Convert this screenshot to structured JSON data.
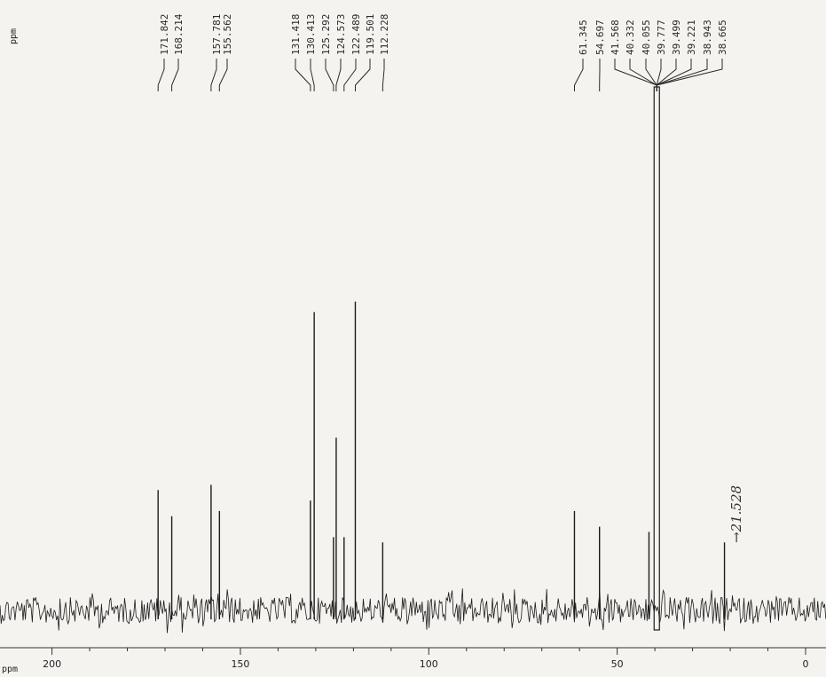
{
  "chart_data": {
    "type": "line",
    "title": "",
    "xlabel": "ppm",
    "ylabel_rotated": "ppm",
    "xlim": [
      207,
      -5
    ],
    "x_reversed": true,
    "x_ticks": [
      200,
      150,
      100,
      50,
      0
    ],
    "tick_labels": [
      "200",
      "150",
      "100",
      "50",
      "0"
    ],
    "peak_labels": [
      "171.842",
      "168.214",
      "157.781",
      "155.562",
      "131.418",
      "130.413",
      "125.292",
      "124.573",
      "122.489",
      "119.501",
      "112.228",
      "61.345",
      "54.697",
      "41.568",
      "40.332",
      "40.055",
      "39.777",
      "39.499",
      "39.221",
      "38.943",
      "38.665"
    ],
    "peaks": [
      {
        "ppm": 171.842,
        "height": 0.23
      },
      {
        "ppm": 168.214,
        "height": 0.18
      },
      {
        "ppm": 157.781,
        "height": 0.24
      },
      {
        "ppm": 155.562,
        "height": 0.19
      },
      {
        "ppm": 131.418,
        "height": 0.21
      },
      {
        "ppm": 130.413,
        "height": 0.57
      },
      {
        "ppm": 125.292,
        "height": 0.14
      },
      {
        "ppm": 124.573,
        "height": 0.33
      },
      {
        "ppm": 122.489,
        "height": 0.14
      },
      {
        "ppm": 119.501,
        "height": 0.59
      },
      {
        "ppm": 112.228,
        "height": 0.13
      },
      {
        "ppm": 61.345,
        "height": 0.19
      },
      {
        "ppm": 54.697,
        "height": 0.16
      },
      {
        "ppm": 41.568,
        "height": 0.15
      },
      {
        "ppm": 39.5,
        "height": 1.0
      },
      {
        "ppm": 21.528,
        "height": 0.13
      }
    ],
    "annotation": "→21.528",
    "grid": false
  }
}
